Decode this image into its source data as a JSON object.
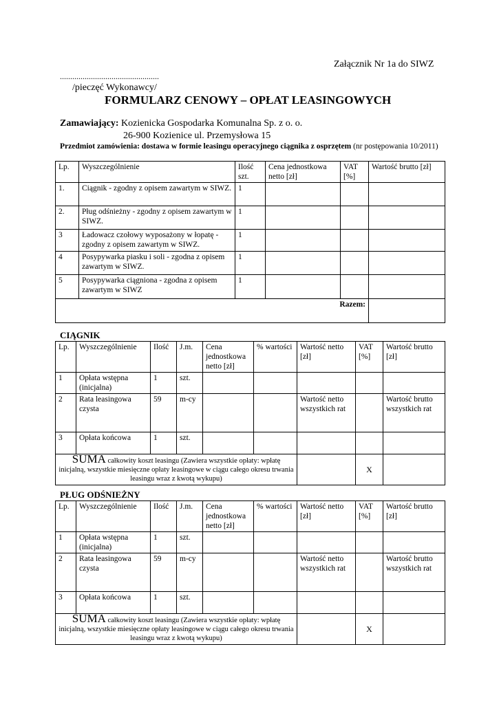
{
  "header": {
    "annex": "Załącznik Nr 1a do SIWZ",
    "dots": "................................................",
    "stamp": "/pieczęć Wykonawcy/",
    "title": "FORMULARZ CENOWY – OPŁAT LEASINGOWYCH"
  },
  "client": {
    "label": "Zamawiający:",
    "name": "Kozienicka Gospodarka Komunalna Sp. z o. o.",
    "address": "26-900 Kozienice ul. Przemysłowa 15"
  },
  "subject": {
    "label": "Przedmiot zamówienia: dostawa w formie leasingu operacyjnego ciągnika z osprzętem",
    "ref": " (nr postępowania 10/2011)"
  },
  "summary_table": {
    "headers": [
      "Lp.",
      "Wyszczególnienie",
      "Ilość szt.",
      "Cena jednostkowa netto [zł]",
      "VAT [%]",
      "Wartość brutto [zł]"
    ],
    "rows": [
      {
        "lp": "1.",
        "desc": "Ciągnik - zgodny z opisem zawartym w SIWZ.",
        "qty": "1"
      },
      {
        "lp": "2.",
        "desc": "Pług odśnieżny - zgodny z opisem zawartym w SIWZ.",
        "qty": "1"
      },
      {
        "lp": "3",
        "desc": "Ładowacz czołowy wyposażony w łopatę - zgodny z opisem zawartym w SIWZ.",
        "qty": "1"
      },
      {
        "lp": "4",
        "desc": "Posypywarka piasku i soli - zgodna z opisem zawartym w SIWZ.",
        "qty": "1"
      },
      {
        "lp": "5",
        "desc": "Posypywarka ciągniona - zgodna z opisem zawartym w SIWZ",
        "qty": "1"
      }
    ],
    "total_label": "Razem:"
  },
  "leasing_tables": [
    {
      "title": "CIĄGNIK"
    },
    {
      "title": "PŁUG ODŚNIEŻNY"
    }
  ],
  "leasing_common": {
    "headers": [
      "Lp.",
      "Wyszczególnienie",
      "Ilość",
      "J.m.",
      "Cena jednostkowa netto [zł]",
      "% wartości",
      "Wartość netto [zł]",
      "VAT [%]",
      "Wartość brutto [zł]"
    ],
    "rows": [
      {
        "lp": "1",
        "desc": "Opłata wstępna (inicjalna)",
        "qty": "1",
        "unit": "szt.",
        "net": "",
        "gross": ""
      },
      {
        "lp": "2",
        "desc": "Rata leasingowa czysta",
        "qty": "59",
        "unit": "m-cy",
        "net": "Wartość netto wszystkich rat",
        "gross": "Wartość brutto wszystkich rat"
      },
      {
        "lp": "3",
        "desc": "Opłata końcowa",
        "qty": "1",
        "unit": "szt.",
        "net": "",
        "gross": ""
      }
    ],
    "suma_big": "SUMA",
    "suma_text": " całkowity koszt leasingu (Zawiera wszystkie opłaty: wpłatę inicjalną, wszystkie miesięczne opłaty leasingowe w ciągu całego okresu trwania leasingu wraz z kwotą wykupu)",
    "suma_vat": "X"
  }
}
